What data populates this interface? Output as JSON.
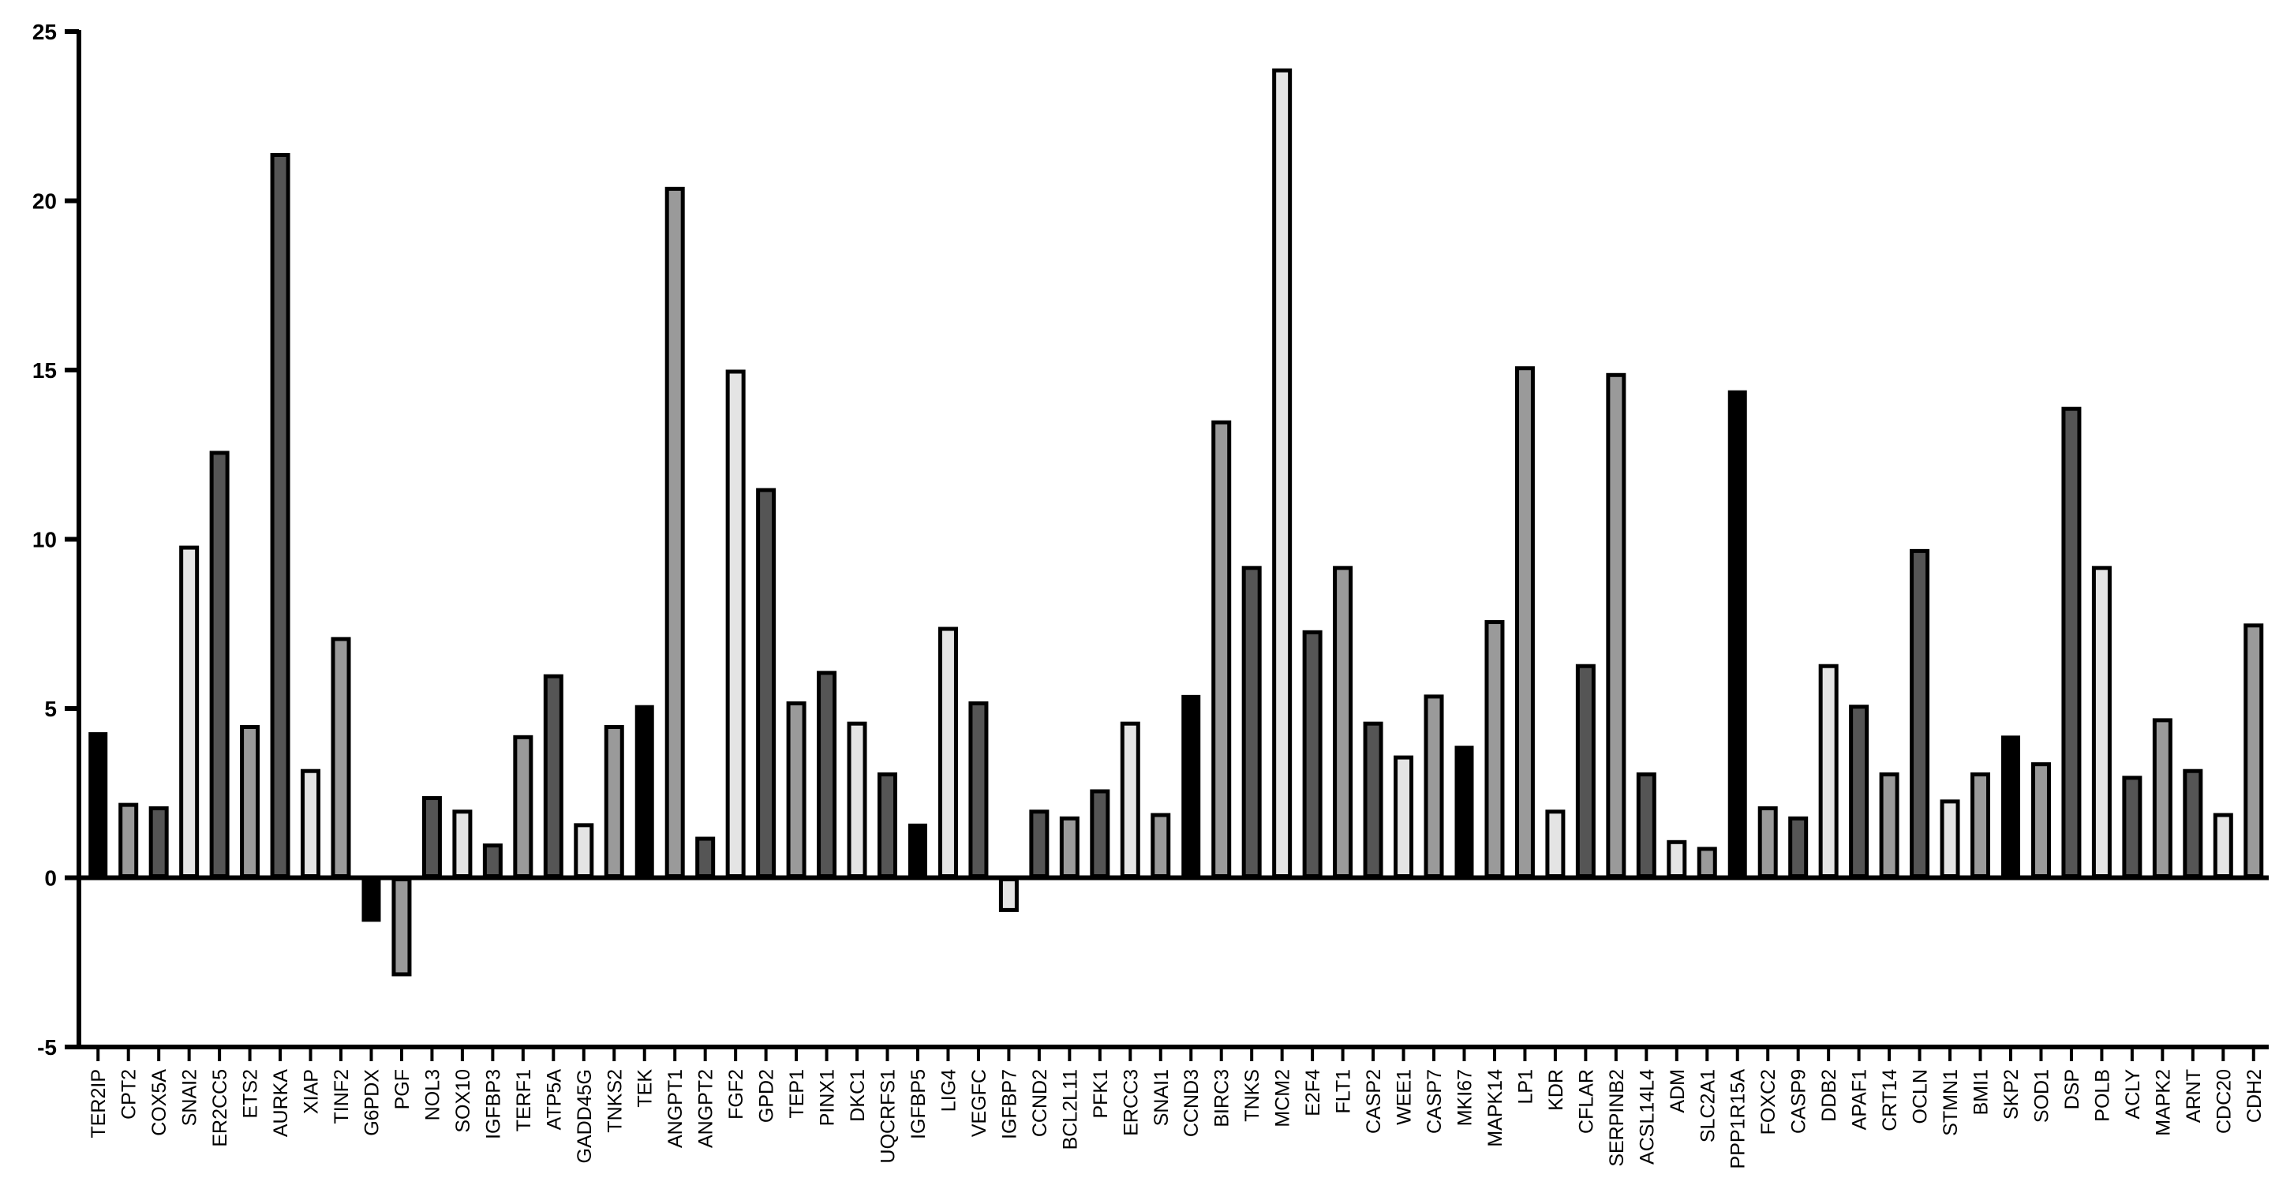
{
  "chart_data": {
    "type": "bar",
    "title": "",
    "xlabel": "",
    "ylabel": "",
    "ylim": [
      -5,
      25
    ],
    "yticks": [
      -5,
      0,
      5,
      10,
      15,
      20,
      25
    ],
    "grid": false,
    "legend": "none",
    "colors": {
      "black": "#000000",
      "dark": "#555555",
      "medium": "#9a9a9a",
      "light": "#e4e4e4",
      "outline": "#000000"
    },
    "categories": [
      "TER2IP",
      "CPT2",
      "COX5A",
      "SNAI2",
      "ER2CC5",
      "ETS2",
      "AURKA",
      "XIAP",
      "TINF2",
      "G6PDX",
      "PGF",
      "NOL3",
      "SOX10",
      "IGFBP3",
      "TERF1",
      "ATP5A",
      "GADD45G",
      "TNKS2",
      "TEK",
      "ANGPT1",
      "ANGPT2",
      "FGF2",
      "GPD2",
      "TEP1",
      "PINX1",
      "DKC1",
      "UQCRFS1",
      "IGFBP5",
      "LIG4",
      "VEGFC",
      "IGFBP7",
      "CCND2",
      "BCL2L11",
      "PFK1",
      "ERCC3",
      "SNAI1",
      "CCND3",
      "BIRC3",
      "TNKS",
      "MCM2",
      "E2F4",
      "FLT1",
      "CASP2",
      "WEE1",
      "CASP7",
      "MKI67",
      "MAPK14",
      "LP1",
      "KDR",
      "CFLAR",
      "SERPINB2",
      "ACSL14L4",
      "ADM",
      "SLC2A1",
      "PPP1R15A",
      "FOXC2",
      "CASP9",
      "DDB2",
      "APAF1",
      "CRT14",
      "OCLN",
      "STMN1",
      "BMI1",
      "SKP2",
      "SOD1",
      "DSP",
      "POLB",
      "ACLY",
      "MAPK2",
      "ARNT",
      "CDC20",
      "CDH2"
    ],
    "values": [
      4.3,
      2.2,
      2.1,
      9.8,
      12.6,
      4.5,
      21.4,
      3.2,
      7.1,
      -1.3,
      -2.9,
      2.4,
      2.0,
      1.0,
      4.2,
      6.0,
      1.6,
      4.5,
      5.1,
      20.4,
      1.2,
      15.0,
      11.5,
      5.2,
      6.1,
      4.6,
      3.1,
      1.6,
      7.4,
      5.2,
      -1.0,
      2.0,
      1.8,
      2.6,
      4.6,
      1.9,
      5.4,
      13.5,
      9.2,
      23.9,
      7.3,
      9.2,
      4.6,
      3.6,
      5.4,
      3.9,
      7.6,
      15.1,
      2.0,
      6.3,
      14.9,
      3.1,
      1.1,
      0.9,
      14.4,
      2.1,
      1.8,
      6.3,
      5.1,
      3.1,
      9.7,
      2.3,
      3.1,
      4.2,
      3.4,
      13.9,
      9.2,
      3.0,
      4.7,
      3.2,
      1.9,
      7.5
    ],
    "fills": [
      "black",
      "medium",
      "dark",
      "light",
      "dark",
      "medium",
      "dark",
      "light",
      "medium",
      "black",
      "medium",
      "dark",
      "light",
      "dark",
      "medium",
      "dark",
      "light",
      "medium",
      "black",
      "medium",
      "dark",
      "light",
      "dark",
      "medium",
      "dark",
      "light",
      "dark",
      "black",
      "light",
      "dark",
      "light",
      "dark",
      "medium",
      "dark",
      "light",
      "medium",
      "black",
      "medium",
      "dark",
      "light",
      "dark",
      "medium",
      "dark",
      "light",
      "medium",
      "black",
      "medium",
      "medium",
      "light",
      "dark",
      "medium",
      "dark",
      "light",
      "medium",
      "black",
      "medium",
      "dark",
      "light",
      "dark",
      "medium",
      "dark",
      "light",
      "medium",
      "black",
      "medium",
      "dark",
      "light",
      "dark",
      "medium",
      "dark",
      "light",
      "medium"
    ]
  }
}
